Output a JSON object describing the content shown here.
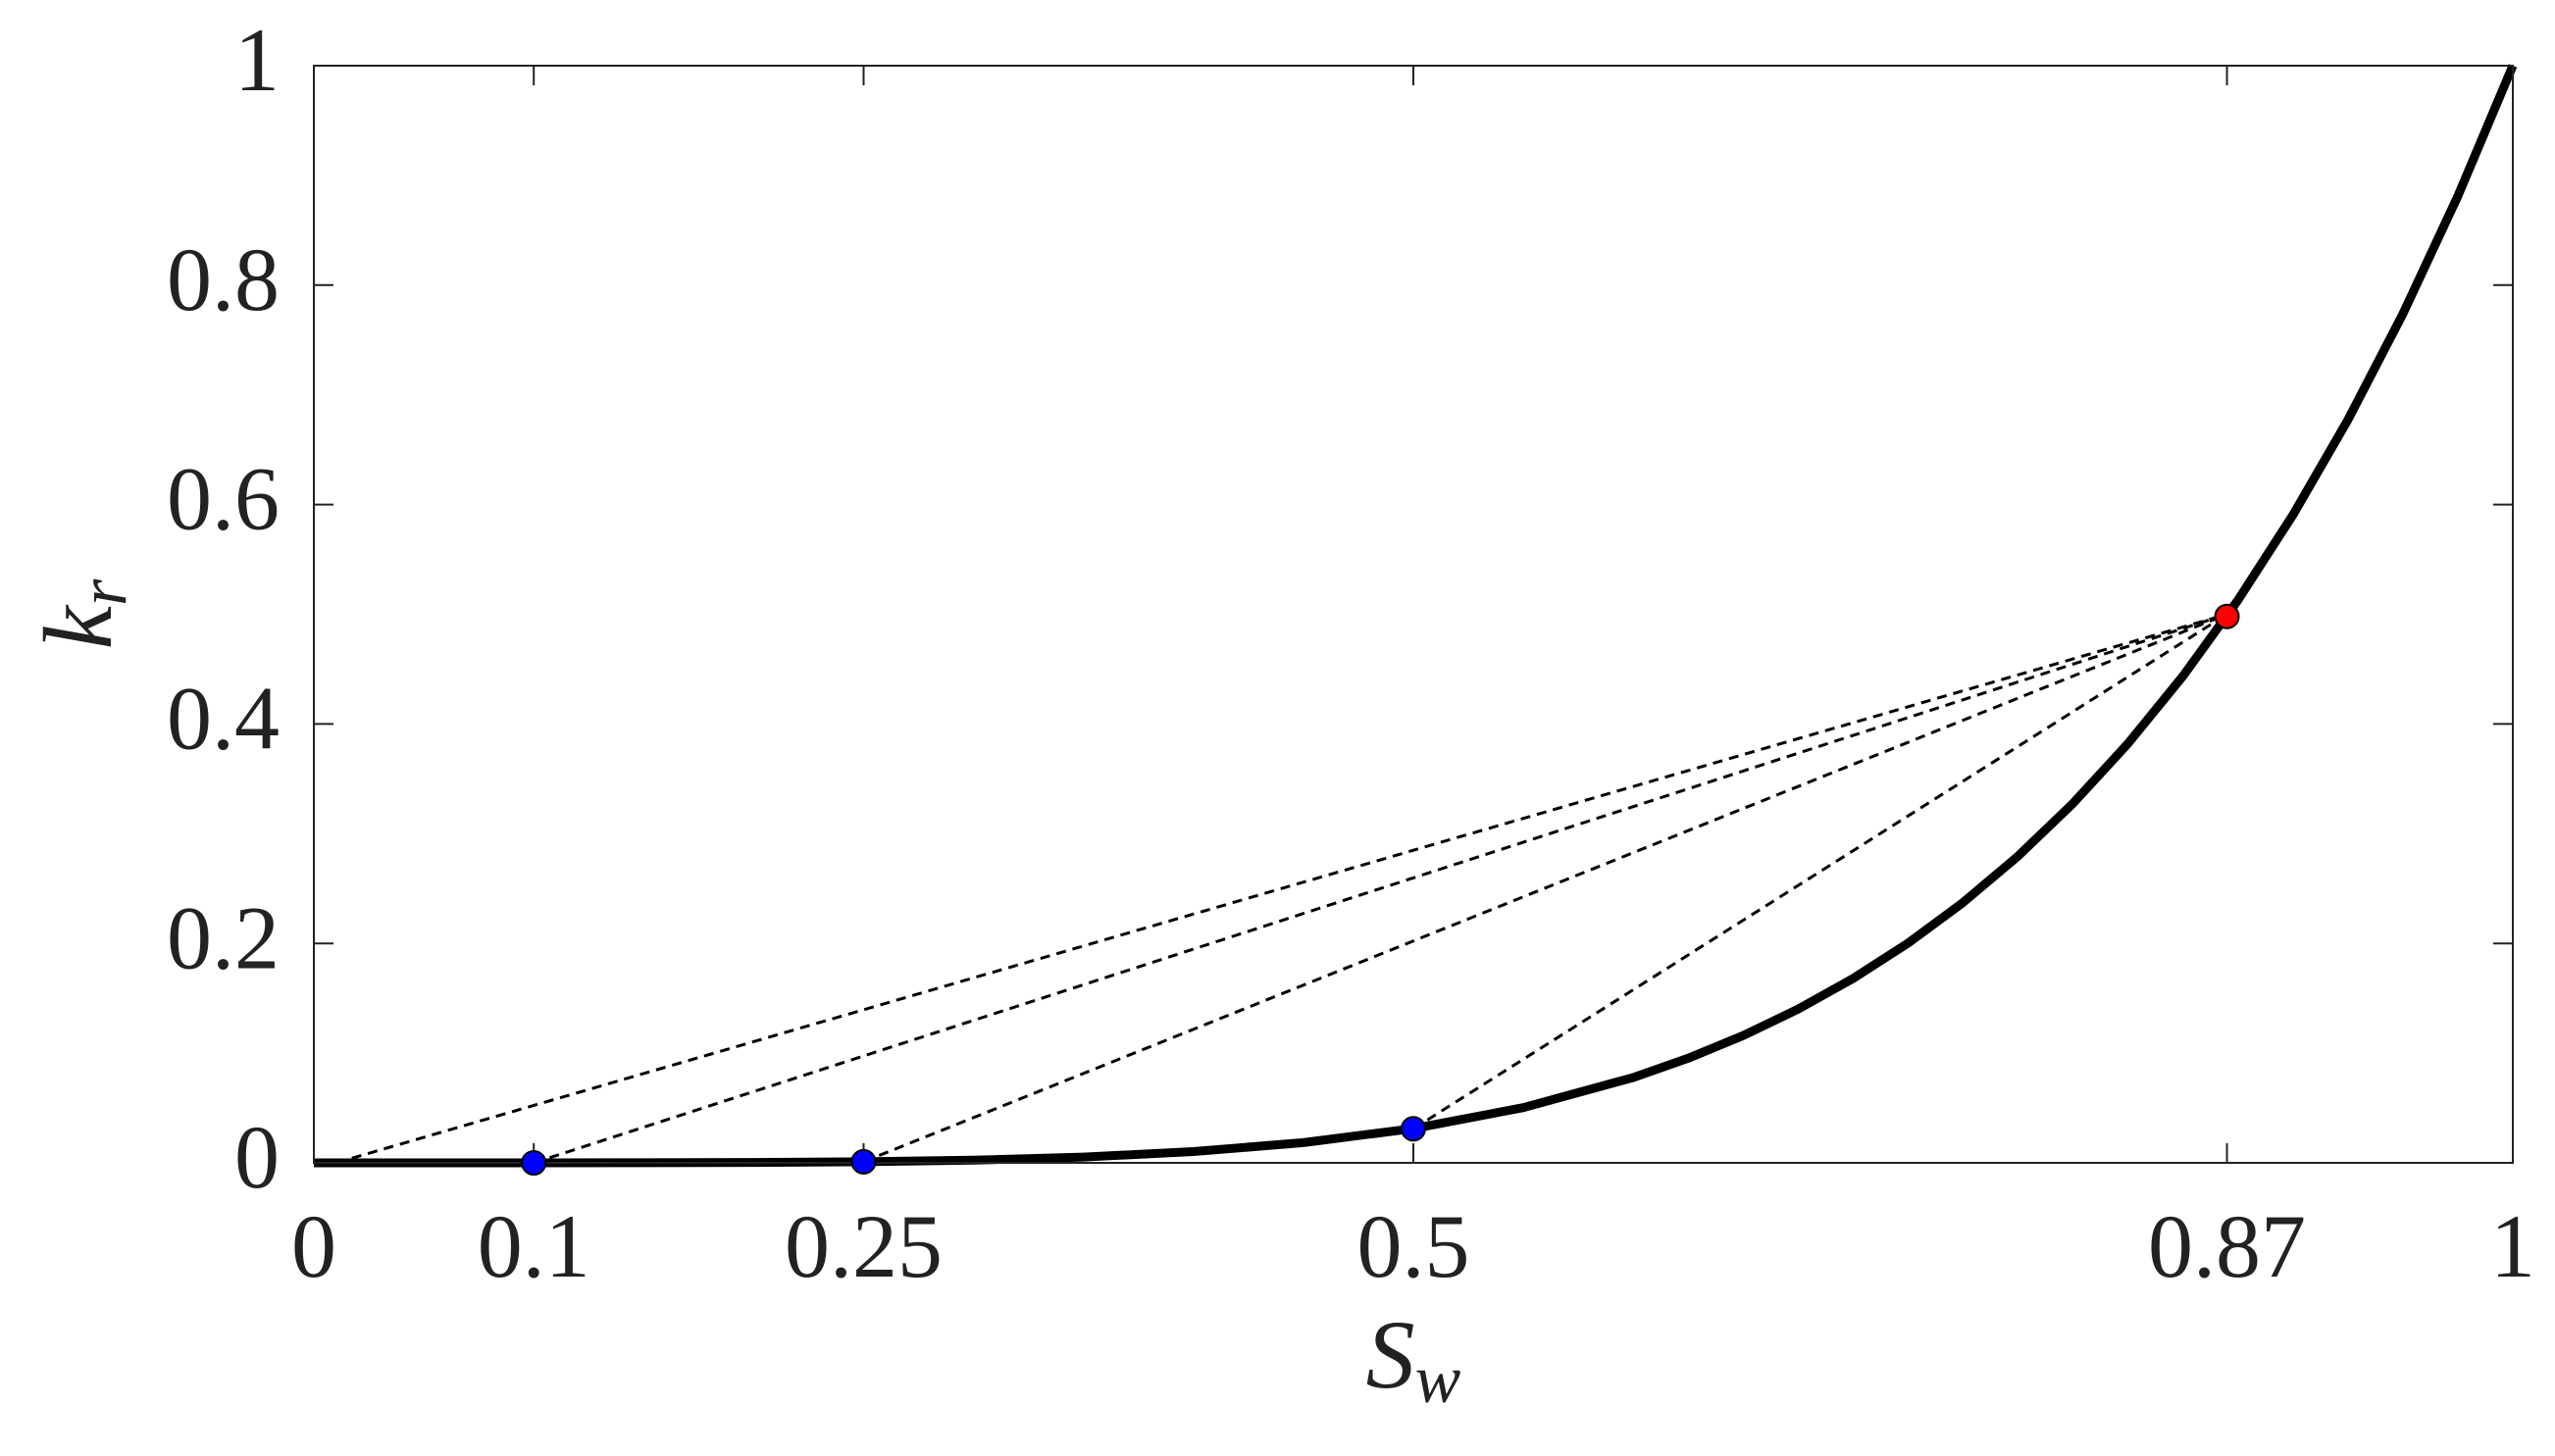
{
  "chart_data": {
    "type": "line",
    "x_label": {
      "text": "S",
      "sub": "w"
    },
    "y_label": {
      "text": "k",
      "sub": "r"
    },
    "xlim": [
      0,
      1
    ],
    "ylim": [
      0,
      1
    ],
    "xticks": [
      0,
      0.1,
      0.25,
      0.5,
      0.87,
      1
    ],
    "yticks": [
      0,
      0.2,
      0.4,
      0.6,
      0.8,
      1
    ],
    "series": [
      {
        "color": "#000000",
        "x": [
          0,
          0.05,
          0.1,
          0.15,
          0.2,
          0.25,
          0.3,
          0.35,
          0.4,
          0.45,
          0.5,
          0.55,
          0.6,
          0.625,
          0.65,
          0.675,
          0.7,
          0.725,
          0.75,
          0.775,
          0.8,
          0.825,
          0.85,
          0.875,
          0.9,
          0.925,
          0.95,
          0.975,
          1
        ],
        "values": [
          0,
          0,
          1e-05,
          8e-05,
          0.00032,
          0.00098,
          0.00243,
          0.00525,
          0.01024,
          0.01845,
          0.03125,
          0.05033,
          0.07776,
          0.09537,
          0.11603,
          0.14013,
          0.16807,
          0.20031,
          0.2373,
          0.27958,
          0.32768,
          0.38218,
          0.44371,
          0.51291,
          0.59049,
          0.67719,
          0.77378,
          0.8811,
          1
        ]
      }
    ],
    "chords": [
      {
        "color": "#000000",
        "x": [
          0.01,
          0.87
        ],
        "values": [
          0,
          0.5
        ]
      },
      {
        "color": "#000000",
        "x": [
          0.1,
          0.87
        ],
        "values": [
          0,
          0.5
        ]
      },
      {
        "color": "#000000",
        "x": [
          0.25,
          0.87
        ],
        "values": [
          0.001,
          0.5
        ]
      },
      {
        "color": "#000000",
        "x": [
          0.5,
          0.87
        ],
        "values": [
          0.031,
          0.5
        ]
      }
    ],
    "points": [
      {
        "x": 0.1,
        "y": 0,
        "color": "#0000ff"
      },
      {
        "x": 0.25,
        "y": 0.001,
        "color": "#0000ff"
      },
      {
        "x": 0.5,
        "y": 0.031,
        "color": "#0000ff"
      },
      {
        "x": 0.87,
        "y": 0.498,
        "color": "#ff0000"
      }
    ]
  }
}
